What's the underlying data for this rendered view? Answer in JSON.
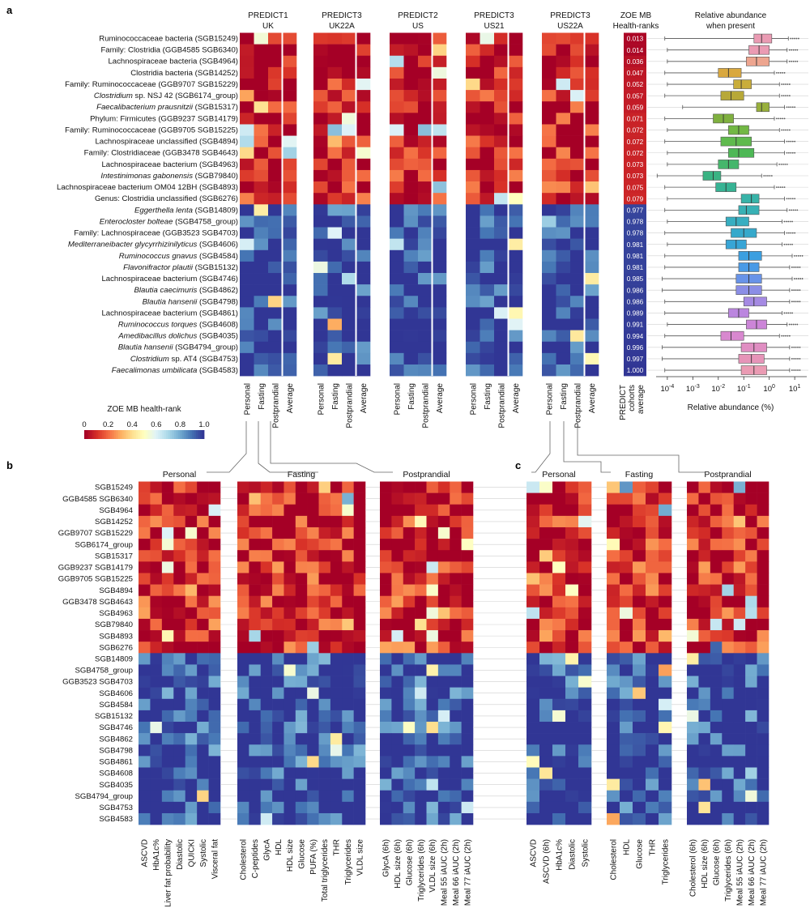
{
  "panel_labels": {
    "a": "a",
    "b": "b",
    "c": "c"
  },
  "chart_data": [
    {
      "type": "heatmap",
      "panel": "a",
      "title": "ZOE MB health-rank per cohort and prediction type",
      "rows": [
        {
          "label": "Ruminococcaceae bacteria (SGB15249)",
          "italic": ""
        },
        {
          "label": "Family: Clostridia (GGB4585 SGB6340)",
          "italic": ""
        },
        {
          "label": "Lachnospiraceae bacteria (SGB4964)",
          "italic": ""
        },
        {
          "label": "Clostridia bacteria (SGB14252)",
          "italic": ""
        },
        {
          "label": "Family: Ruminococcaceae (GGB9707 SGB15229)",
          "italic": ""
        },
        {
          "label": "Clostridium sp. NSJ 42 (SGB6174_group)",
          "italic": "Clostridium"
        },
        {
          "label": "Faecalibacterium prausnitzii (SGB15317)",
          "italic": "Faecalibacterium prausnitzii"
        },
        {
          "label": "Phylum: Firmicutes (GGB9237 SGB14179)",
          "italic": ""
        },
        {
          "label": "Family: Ruminococcaceae (GGB9705 SGB15225)",
          "italic": ""
        },
        {
          "label": "Lachnospiraceae unclassified (SGB4894)",
          "italic": ""
        },
        {
          "label": "Family: Clostridiaceae (GGB3478 SGB4643)",
          "italic": ""
        },
        {
          "label": "Lachnospiraceae bacterium (SGB4963)",
          "italic": ""
        },
        {
          "label": "Intestinimonas gabonensis (SGB79840)",
          "italic": "Intestinimonas gabonensis"
        },
        {
          "label": "Lachnospiraceae bacterium OM04 12BH (SGB4893)",
          "italic": ""
        },
        {
          "label": "Genus: Clostridia unclassified (SGB6276)",
          "italic": ""
        },
        {
          "label": "Eggerthella lenta (SGB14809)",
          "italic": "Eggerthella lenta"
        },
        {
          "label": "Enterocloster bolteae (SGB4758_group)",
          "italic": "Enterocloster bolteae"
        },
        {
          "label": "Family: Lachnospiraceae (GGB3523 SGB4703)",
          "italic": ""
        },
        {
          "label": "Mediterraneibacter glycyrrhizinilyticus (SGB4606)",
          "italic": "Mediterraneibacter glycyrrhizinilyticus"
        },
        {
          "label": "Ruminococcus gnavus (SGB4584)",
          "italic": "Ruminococcus gnavus"
        },
        {
          "label": "Flavonifractor plautii (SGB15132)",
          "italic": "Flavonifractor plautii"
        },
        {
          "label": "Lachnospiraceae bacterium (SGB4746)",
          "italic": ""
        },
        {
          "label": "Blautia caecimuris (SGB4862)",
          "italic": "Blautia caecimuris"
        },
        {
          "label": "Blautia hansenii (SGB4798)",
          "italic": "Blautia hansenii"
        },
        {
          "label": "Lachnospiraceae bacterium (SGB4861)",
          "italic": ""
        },
        {
          "label": "Ruminococcus torques (SGB4608)",
          "italic": "Ruminococcus torques"
        },
        {
          "label": "Amedibacillus dolichus (SGB4035)",
          "italic": "Amedibacillus dolichus"
        },
        {
          "label": "Blautia hansenii (SGB4794_group)",
          "italic": "Blautia hansenii"
        },
        {
          "label": "Clostridium sp. AT4 (SGB4753)",
          "italic": "Clostridium"
        },
        {
          "label": "Faecalimonas umbilicata (SGB4583)",
          "italic": "Faecalimonas umbilicata"
        }
      ],
      "cohorts": [
        {
          "name": "PREDICT1",
          "sub": "UK"
        },
        {
          "name": "PREDICT3",
          "sub": "UK22A"
        },
        {
          "name": "PREDICT2",
          "sub": "US"
        },
        {
          "name": "PREDICT3",
          "sub": "US21"
        },
        {
          "name": "PREDICT3",
          "sub": "US22A"
        }
      ],
      "columns": [
        "Personal",
        "Fasting",
        "Postprandial",
        "Average"
      ],
      "color_scale": {
        "label": "ZOE MB health-rank",
        "min": 0,
        "max": 1,
        "ticks": [
          "0",
          "0.2",
          "0.4",
          "0.6",
          "0.8",
          "1.0"
        ]
      },
      "ranks_header": [
        "ZOE MB",
        "Health-ranks"
      ],
      "ranks_footer": [
        "PREDICT",
        "cohorts",
        "average"
      ],
      "ranks": [
        0.013,
        0.014,
        0.036,
        0.047,
        0.052,
        0.057,
        0.059,
        0.071,
        0.072,
        0.072,
        0.072,
        0.073,
        0.073,
        0.075,
        0.079,
        0.977,
        0.978,
        0.978,
        0.981,
        0.981,
        0.981,
        0.985,
        0.986,
        0.986,
        0.989,
        0.991,
        0.994,
        0.996,
        0.997,
        1.0
      ],
      "rank_labels": [
        "0.013",
        "0.014",
        "0.036",
        "0.047",
        "0.052",
        "0.057",
        "0.059",
        "0.071",
        "0.072",
        "0.072",
        "0.072",
        "0.073",
        "0.073",
        "0.075",
        "0.079",
        "0.977",
        "0.978",
        "0.978",
        "0.981",
        "0.981",
        "0.981",
        "0.985",
        "0.986",
        "0.986",
        "0.989",
        "0.991",
        "0.994",
        "0.996",
        "0.997",
        "1.000"
      ]
    },
    {
      "type": "box",
      "panel": "a",
      "title": "Relative abundance when present",
      "title_lines": [
        "Relative abundance",
        "when present"
      ],
      "xlabel": "Relative abundance (%)",
      "xscale": "log10",
      "xlim": [
        -4.6,
        1.6
      ],
      "ticks": [
        {
          "exp": "-4",
          "v": -4
        },
        {
          "exp": "-3",
          "v": -3
        },
        {
          "exp": "-2",
          "v": -2
        },
        {
          "exp": "-1",
          "v": -1
        },
        {
          "exp": "0",
          "v": 0
        },
        {
          "exp": "1",
          "v": 1
        }
      ],
      "boxes_log10": [
        [
          -4.1,
          -0.6,
          -0.3,
          0.1,
          0.75
        ],
        [
          -4.0,
          -0.8,
          -0.4,
          0.0,
          0.7
        ],
        [
          -4.0,
          -0.9,
          -0.5,
          0.0,
          0.7
        ],
        [
          -4.1,
          -2.0,
          -1.6,
          -1.1,
          0.2
        ],
        [
          -4.0,
          -1.4,
          -1.1,
          -0.7,
          0.4
        ],
        [
          -4.1,
          -1.9,
          -1.5,
          -1.0,
          0.4
        ],
        [
          -3.4,
          -0.5,
          -0.3,
          0.0,
          0.6
        ],
        [
          -4.1,
          -2.2,
          -1.8,
          -1.4,
          0.2
        ],
        [
          -4.0,
          -1.6,
          -1.2,
          -0.8,
          0.4
        ],
        [
          -4.1,
          -1.9,
          -1.3,
          -0.7,
          0.6
        ],
        [
          -4.0,
          -1.6,
          -1.2,
          -0.6,
          0.6
        ],
        [
          -4.0,
          -2.0,
          -1.6,
          -1.2,
          0.3
        ],
        [
          -4.4,
          -2.6,
          -2.2,
          -1.9,
          -0.3
        ],
        [
          -4.1,
          -2.1,
          -1.7,
          -1.3,
          0.2
        ],
        [
          -4.0,
          -1.1,
          -0.7,
          -0.4,
          0.6
        ],
        [
          -4.1,
          -1.2,
          -0.9,
          -0.4,
          0.7
        ],
        [
          -4.0,
          -1.7,
          -1.3,
          -0.8,
          0.5
        ],
        [
          -4.1,
          -1.5,
          -1.0,
          -0.5,
          0.6
        ],
        [
          -4.0,
          -1.7,
          -1.3,
          -0.9,
          0.5
        ],
        [
          -4.1,
          -1.2,
          -0.8,
          -0.3,
          0.9
        ],
        [
          -4.1,
          -1.2,
          -0.8,
          -0.4,
          0.8
        ],
        [
          -4.2,
          -1.3,
          -0.8,
          -0.3,
          0.9
        ],
        [
          -4.2,
          -1.3,
          -0.8,
          -0.3,
          0.8
        ],
        [
          -4.1,
          -1.0,
          -0.6,
          -0.1,
          0.8
        ],
        [
          -4.1,
          -1.6,
          -1.2,
          -0.8,
          0.5
        ],
        [
          -4.0,
          -0.9,
          -0.5,
          -0.1,
          0.7
        ],
        [
          -4.1,
          -1.9,
          -1.5,
          -1.0,
          0.4
        ],
        [
          -4.2,
          -1.1,
          -0.6,
          -0.1,
          0.8
        ],
        [
          -4.2,
          -1.2,
          -0.7,
          -0.2,
          0.8
        ],
        [
          -4.1,
          -1.1,
          -0.6,
          -0.1,
          0.8
        ]
      ],
      "box_colors": [
        "#ea9bb3",
        "#ea9bb3",
        "#eda58f",
        "#d9a83f",
        "#c9ad3b",
        "#b7a838",
        "#98b03c",
        "#7fb03f",
        "#72b844",
        "#5fba4d",
        "#4eb856",
        "#46b66c",
        "#3ab383",
        "#37b394",
        "#38b3a8",
        "#38b1b5",
        "#37aec1",
        "#36a9cb",
        "#38a5d6",
        "#3b9fe0",
        "#4a9ae6",
        "#6893e8",
        "#8b8ee6",
        "#a58ae3",
        "#bb86df",
        "#cc85d8",
        "#d888cf",
        "#e08ec2",
        "#e694b8",
        "#ea9bb3"
      ]
    },
    {
      "type": "heatmap",
      "panel": "b",
      "row_labels": [
        "SGB15249",
        "GGB4585 SGB6340",
        "SGB4964",
        "SGB14252",
        "GGB9707 SGB15229",
        "SGB6174_group",
        "SGB15317",
        "GGB9237 SGB14179",
        "GGB9705 SGB15225",
        "SGB4894",
        "GGB3478 SGB4643",
        "SGB4963",
        "SGB79840",
        "SGB4893",
        "SGB6276",
        "SGB14809",
        "SGB4758_group",
        "GGB3523 SGB4703",
        "SGB4606",
        "SGB4584",
        "SGB15132",
        "SGB4746",
        "SGB4862",
        "SGB4798",
        "SGB4861",
        "SGB4608",
        "SGB4035",
        "SGB4794_group",
        "SGB4753",
        "SGB4583"
      ],
      "groups": [
        {
          "name": "Personal",
          "columns": [
            "ASCVD",
            "HbA1c%",
            "Liver fat probability",
            "Diastolic",
            "QUICKI",
            "Systolic",
            "Visceral fat"
          ]
        },
        {
          "name": "Fasting",
          "columns": [
            "Cholesterol",
            "C-peptides",
            "GlycA",
            "HDL",
            "HDL size",
            "Glucose",
            "PUFA (%)",
            "Total triglycerides",
            "THR",
            "Triglycerides",
            "VLDL size"
          ]
        },
        {
          "name": "Postprandial",
          "columns": [
            "GlycA (6h)",
            "HDL size (6h)",
            "Glucose (6h)",
            "Triglycerides (6h)",
            "VLDL size (6h)",
            "Meal 55 iAUC (2h)",
            "Meal 66 iAUC (2h)",
            "Meal 77 iAUC (2h)"
          ]
        }
      ]
    },
    {
      "type": "heatmap",
      "panel": "c",
      "groups": [
        {
          "name": "Personal",
          "columns": [
            "ASCVD",
            "ASCVD (6h)",
            "HbA1c%",
            "Diastolic",
            "Systolic"
          ]
        },
        {
          "name": "Fasting",
          "columns": [
            "Cholesterol",
            "HDL",
            "Glucose",
            "THR",
            "Triglycerides"
          ]
        },
        {
          "name": "Postprandial",
          "columns": [
            "Cholesterol (6h)",
            "HDL size (6h)",
            "Glucose (6h)",
            "Triglycerides (6h)",
            "Meal 55 iAUC (2h)",
            "Meal 66 iAUC (2h)",
            "Meal 77 iAUC (2h)"
          ]
        }
      ]
    }
  ]
}
